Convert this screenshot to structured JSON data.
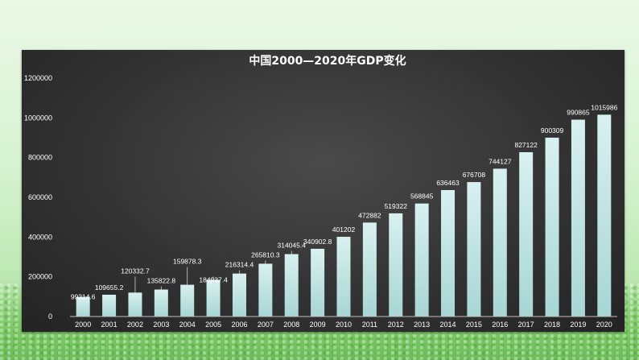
{
  "chart_data": {
    "type": "bar",
    "title": "中国2000—2020年GDP变化",
    "xlabel": "",
    "ylabel": "",
    "ylim": [
      0,
      1200000
    ],
    "yticks": [
      "0",
      "200000",
      "400000",
      "600000",
      "800000",
      "1000000",
      "1200000"
    ],
    "grid": false,
    "legend": "none",
    "categories": [
      "2000",
      "2001",
      "2002",
      "2003",
      "2004",
      "2005",
      "2006",
      "2007",
      "2008",
      "2009",
      "2010",
      "2011",
      "2012",
      "2013",
      "2014",
      "2015",
      "2016",
      "2017",
      "2018",
      "2019",
      "2020"
    ],
    "values": [
      99214.6,
      109655.2,
      120332.7,
      135822.8,
      159878.3,
      184937.4,
      216314.4,
      265810.3,
      314045.4,
      340902.8,
      401202,
      472882,
      519322,
      568845,
      636463,
      676708,
      744127,
      827122,
      900309,
      990865,
      1015986
    ],
    "data_labels": [
      "99214.6",
      "109655.2",
      "120332.7",
      "135822.8",
      "159878.3",
      "184937.4",
      "216314.4",
      "265810.3",
      "314045.4",
      "340902.8",
      "401202",
      "472882",
      "519322",
      "568845",
      "636463",
      "676708",
      "744127",
      "827122",
      "900309",
      "990865",
      "1015986"
    ],
    "colors": {
      "bar_top": "#d8f1f0",
      "bar_bottom": "#a7d6d4",
      "text": "#ffffff",
      "axis": "#bfbfbf"
    }
  }
}
